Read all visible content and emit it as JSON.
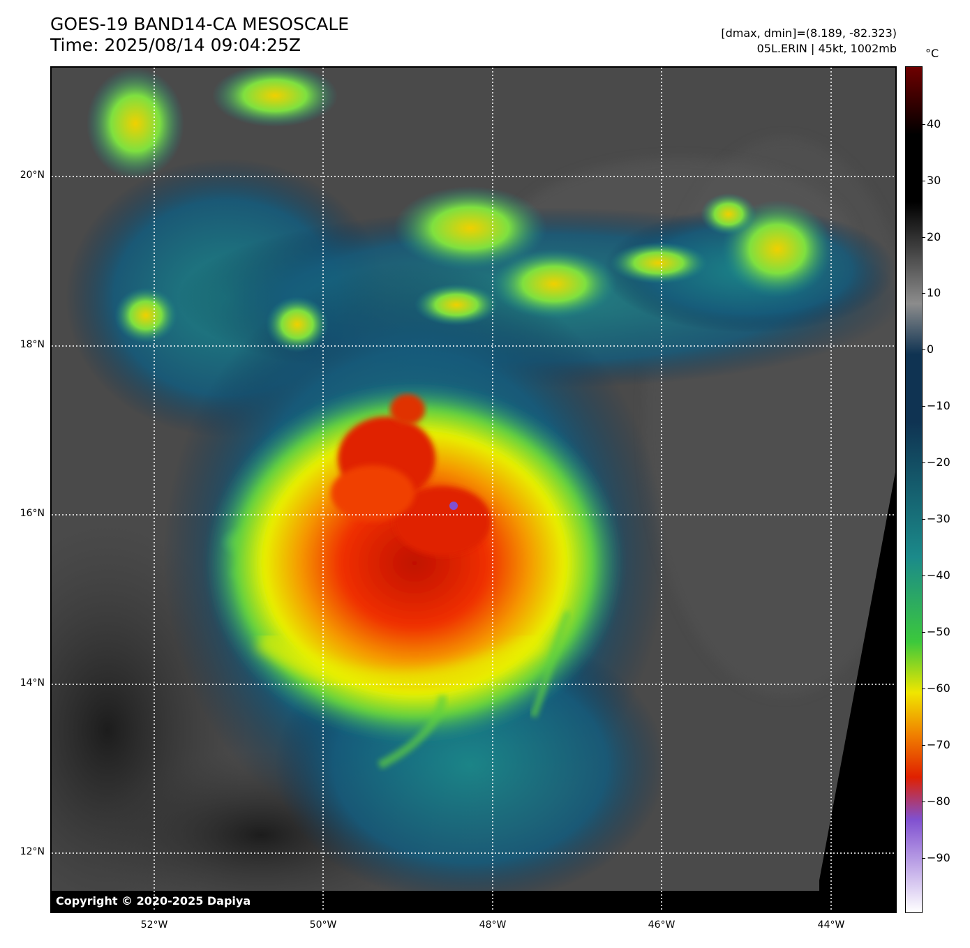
{
  "header": {
    "title_line1": "GOES-19 BAND14-CA MESOSCALE",
    "title_line2": "Time: 2025/08/14 09:04:25Z",
    "info_line1": "[dmax, dmin]=(8.189, -82.323)",
    "info_line2": "05L.ERIN | 45kt, 1002mb"
  },
  "map": {
    "copyright": "Copyright © 2020-2025 Dapiya",
    "lat_labels": [
      "20°N",
      "18°N",
      "16°N",
      "14°N",
      "12°N"
    ],
    "lon_labels": [
      "52°W",
      "50°W",
      "48°W",
      "46°W",
      "44°W"
    ]
  },
  "colorbar": {
    "unit": "°C",
    "ticks": [
      "40",
      "30",
      "20",
      "10",
      "0",
      "−10",
      "−20",
      "−30",
      "−40",
      "−50",
      "−60",
      "−70",
      "−80",
      "−90"
    ],
    "colors": {
      "warm_top": "#6e0000",
      "black": "#000000",
      "gray": "#8c8c8c",
      "navy": "#0f3352",
      "teal": "#1b8a8a",
      "green": "#3cc83c",
      "yellow": "#f0e600",
      "orange": "#f08000",
      "red": "#e02000",
      "purple": "#8050d0",
      "white": "#ffffff"
    }
  }
}
